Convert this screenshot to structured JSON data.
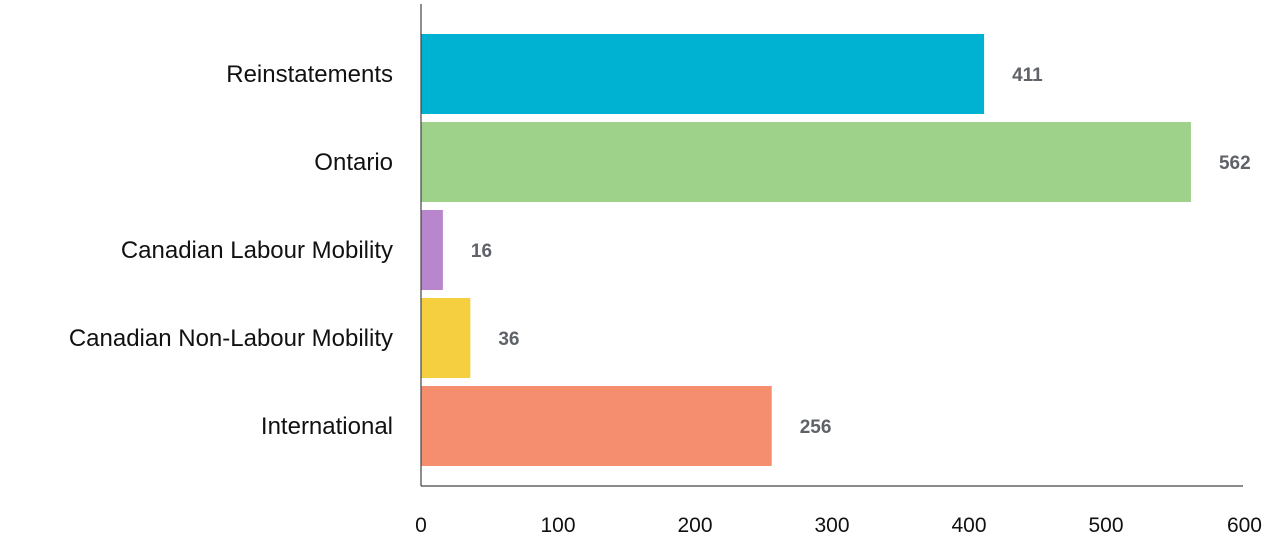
{
  "chart_data": {
    "type": "bar",
    "orientation": "horizontal",
    "title": "",
    "xlabel": "",
    "ylabel": "",
    "categories": [
      "Reinstatements",
      "Ontario",
      "Canadian Labour Mobility",
      "Canadian Non-Labour Mobility",
      "International"
    ],
    "values": [
      411,
      562,
      16,
      36,
      256
    ],
    "colors": [
      "#00b2d1",
      "#9ed18a",
      "#b886cc",
      "#f5cf3f",
      "#f58e6e"
    ],
    "xlim": [
      0,
      600
    ],
    "xticks": [
      0,
      100,
      200,
      300,
      400,
      500,
      600
    ],
    "grid": false,
    "legend": "none"
  }
}
